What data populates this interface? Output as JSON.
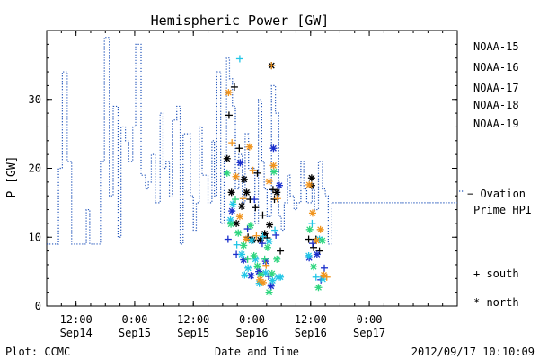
{
  "chart_data": {
    "type": "scatter",
    "title": "Hemispheric Power [GW]",
    "ylabel": "P [GW]",
    "xlabel": "Date and Time",
    "ylim": [
      0,
      40
    ],
    "yticks": [
      0,
      10,
      20,
      30
    ],
    "xlim_hours": [
      -6,
      78
    ],
    "xticks": [
      {
        "h": 0,
        "time": "12:00",
        "date": "Sep14"
      },
      {
        "h": 12,
        "time": "0:00",
        "date": "Sep15"
      },
      {
        "h": 24,
        "time": "12:00",
        "date": "Sep15"
      },
      {
        "h": 36,
        "time": "0:00",
        "date": "Sep16"
      },
      {
        "h": 48,
        "time": "12:00",
        "date": "Sep16"
      },
      {
        "h": 60,
        "time": "0:00",
        "date": "Sep17"
      }
    ],
    "legend": {
      "placement": "right",
      "satellites": [
        {
          "name": "NOAA-15",
          "color": "#000000"
        },
        {
          "name": "NOAA-16",
          "color": "#1a2fcc"
        },
        {
          "name": "NOAA-17",
          "color": "#22c6e6"
        },
        {
          "name": "NOAA-18",
          "color": "#2ed67e"
        },
        {
          "name": "NOAA-19",
          "color": "#f0941e"
        }
      ],
      "ovation_label_1": "− Ovation",
      "ovation_label_2": "Prime HPI",
      "ovation_color": "#2255bb",
      "south_label": "+ south",
      "north_label": "* north"
    },
    "series": [
      {
        "name": "Ovation Prime HPI",
        "style": "dotted-step",
        "color": "#2255bb",
        "points": [
          [
            -6,
            9
          ],
          [
            -3.6,
            20
          ],
          [
            -2.8,
            34
          ],
          [
            -1.8,
            21
          ],
          [
            -0.9,
            9
          ],
          [
            2.1,
            14
          ],
          [
            2.8,
            9
          ],
          [
            5,
            21
          ],
          [
            5.8,
            39
          ],
          [
            6.8,
            16
          ],
          [
            7.6,
            29
          ],
          [
            8.6,
            10
          ],
          [
            9.2,
            26
          ],
          [
            10.1,
            24
          ],
          [
            10.8,
            21
          ],
          [
            11.6,
            26
          ],
          [
            12.2,
            38
          ],
          [
            13.3,
            19
          ],
          [
            14.2,
            17
          ],
          [
            14.8,
            18
          ],
          [
            15.4,
            22
          ],
          [
            16.2,
            15
          ],
          [
            17.2,
            28
          ],
          [
            17.8,
            20
          ],
          [
            18.4,
            21
          ],
          [
            19.1,
            16
          ],
          [
            19.8,
            27
          ],
          [
            20.6,
            29
          ],
          [
            21.3,
            9
          ],
          [
            21.9,
            25
          ],
          [
            23.4,
            16
          ],
          [
            24,
            11
          ],
          [
            24.6,
            15
          ],
          [
            25.2,
            26
          ],
          [
            25.8,
            19
          ],
          [
            27,
            15
          ],
          [
            27.8,
            24
          ],
          [
            28.3,
            16
          ],
          [
            28.8,
            34
          ],
          [
            29.6,
            12
          ],
          [
            30.3,
            21
          ],
          [
            30.8,
            36
          ],
          [
            31.4,
            33
          ],
          [
            32,
            29
          ],
          [
            32.6,
            17
          ],
          [
            33.3,
            22
          ],
          [
            34,
            15
          ],
          [
            34.6,
            25
          ],
          [
            35.3,
            20
          ],
          [
            36,
            20
          ],
          [
            36.6,
            12
          ],
          [
            37.3,
            30
          ],
          [
            38,
            21
          ],
          [
            38.5,
            17
          ],
          [
            39.1,
            13
          ],
          [
            40,
            32
          ],
          [
            40.8,
            28
          ],
          [
            41.5,
            13
          ],
          [
            42,
            11
          ],
          [
            42.6,
            15
          ],
          [
            43.3,
            19
          ],
          [
            43.8,
            16
          ],
          [
            44.6,
            14
          ],
          [
            45.2,
            15
          ],
          [
            46,
            21
          ],
          [
            46.6,
            17
          ],
          [
            47.2,
            15
          ],
          [
            48.3,
            17
          ],
          [
            48.8,
            14
          ],
          [
            49.6,
            21
          ],
          [
            50.4,
            17
          ],
          [
            51,
            16
          ],
          [
            51.6,
            9
          ],
          [
            52.2,
            15
          ],
          [
            53,
            15
          ]
        ]
      },
      {
        "name": "NOAA-15",
        "color": "#000000",
        "points": [
          [
            30.9,
            21.4,
            "n"
          ],
          [
            31.3,
            27.7,
            "s"
          ],
          [
            31.8,
            16.5,
            "n"
          ],
          [
            32.4,
            31.8,
            "s"
          ],
          [
            32.8,
            12,
            "n"
          ],
          [
            33.4,
            22.9,
            "s"
          ],
          [
            33.9,
            14.5,
            "n"
          ],
          [
            34.4,
            18.4,
            "n"
          ],
          [
            34.9,
            16.5,
            "n"
          ],
          [
            35.2,
            10,
            "s"
          ],
          [
            35.6,
            15.5,
            "s"
          ],
          [
            36.1,
            9.6,
            "n"
          ],
          [
            36.7,
            14.3,
            "s"
          ],
          [
            37.1,
            19.3,
            "s"
          ],
          [
            37.7,
            9.6,
            "n"
          ],
          [
            38.2,
            13.2,
            "s"
          ],
          [
            38.6,
            10.5,
            "n"
          ],
          [
            39.1,
            9.9,
            "s"
          ],
          [
            39.6,
            11.8,
            "n"
          ],
          [
            40,
            34.9,
            "n"
          ],
          [
            40.3,
            16.9,
            "s"
          ],
          [
            40.6,
            15.5,
            "s"
          ],
          [
            41.1,
            16.5,
            "n"
          ],
          [
            41.8,
            8,
            "s"
          ],
          [
            47.6,
            9.7,
            "s"
          ],
          [
            48.2,
            18.6,
            "n"
          ],
          [
            48.6,
            8.5,
            "s"
          ],
          [
            49.1,
            9.7,
            "s"
          ],
          [
            49.8,
            8,
            "s"
          ],
          [
            48.2,
            17.5,
            "n"
          ]
        ]
      },
      {
        "name": "NOAA-16",
        "color": "#1a2fcc",
        "points": [
          [
            31.1,
            9.7,
            "s"
          ],
          [
            31.9,
            13.8,
            "n"
          ],
          [
            32.8,
            7.5,
            "s"
          ],
          [
            33.6,
            20.8,
            "n"
          ],
          [
            34.3,
            6.7,
            "n"
          ],
          [
            35.1,
            11.2,
            "s"
          ],
          [
            35.8,
            4.4,
            "n"
          ],
          [
            36.5,
            15.5,
            "s"
          ],
          [
            37.4,
            5,
            "n"
          ],
          [
            38.1,
            9.1,
            "s"
          ],
          [
            38.8,
            6.5,
            "n"
          ],
          [
            39.4,
            4.3,
            "s"
          ],
          [
            39.9,
            2.9,
            "n"
          ],
          [
            40.4,
            22.9,
            "n"
          ],
          [
            40.9,
            10.3,
            "s"
          ],
          [
            41.6,
            17.5,
            "n"
          ],
          [
            47.7,
            7,
            "n"
          ],
          [
            48.4,
            9.1,
            "s"
          ],
          [
            49.3,
            7.5,
            "n"
          ],
          [
            50.1,
            3.8,
            "s"
          ],
          [
            50.8,
            5.5,
            "s"
          ]
        ]
      },
      {
        "name": "NOAA-17",
        "color": "#22c6e6",
        "points": [
          [
            31.6,
            12.5,
            "n"
          ],
          [
            32.1,
            14.8,
            "n"
          ],
          [
            32.9,
            8.9,
            "s"
          ],
          [
            33.5,
            35.9,
            "s"
          ],
          [
            33.9,
            7.5,
            "n"
          ],
          [
            34.5,
            4.5,
            "n"
          ],
          [
            35.2,
            5.5,
            "n"
          ],
          [
            35.9,
            9.5,
            "n"
          ],
          [
            36.7,
            6.8,
            "n"
          ],
          [
            37.5,
            3.3,
            "n"
          ],
          [
            38.2,
            10.1,
            "s"
          ],
          [
            38.8,
            4.8,
            "n"
          ],
          [
            39.5,
            9.4,
            "n"
          ],
          [
            40.2,
            3.7,
            "n"
          ],
          [
            40.7,
            11,
            "s"
          ],
          [
            41.4,
            4.2,
            "n"
          ],
          [
            41.8,
            4.2,
            "n"
          ],
          [
            47.6,
            7.3,
            "n"
          ],
          [
            48.3,
            12,
            "s"
          ],
          [
            49.1,
            4.2,
            "s"
          ],
          [
            49.8,
            9.7,
            "n"
          ],
          [
            50.5,
            3.9,
            "n"
          ]
        ]
      },
      {
        "name": "NOAA-18",
        "color": "#2ed67e",
        "points": [
          [
            30.9,
            19.3,
            "n"
          ],
          [
            31.7,
            11.9,
            "n"
          ],
          [
            32.6,
            15.5,
            "s"
          ],
          [
            33.2,
            10.6,
            "n"
          ],
          [
            34.3,
            8.8,
            "n"
          ],
          [
            35.1,
            6.8,
            "s"
          ],
          [
            35.7,
            11.7,
            "n"
          ],
          [
            36.4,
            7.3,
            "n"
          ],
          [
            37.1,
            5.8,
            "n"
          ],
          [
            37.8,
            4.6,
            "n"
          ],
          [
            38.6,
            6.8,
            "s"
          ],
          [
            39.2,
            8.5,
            "n"
          ],
          [
            39.5,
            2,
            "n"
          ],
          [
            40.1,
            4.7,
            "n"
          ],
          [
            40.5,
            19.5,
            "n"
          ],
          [
            41.1,
            6.8,
            "n"
          ],
          [
            47.8,
            11.1,
            "n"
          ],
          [
            48.6,
            5.7,
            "n"
          ],
          [
            49.6,
            2.7,
            "n"
          ],
          [
            50.4,
            9.5,
            "n"
          ]
        ]
      },
      {
        "name": "NOAA-19",
        "color": "#f0941e",
        "points": [
          [
            31.2,
            31,
            "n"
          ],
          [
            31.9,
            23.7,
            "s"
          ],
          [
            32.7,
            18.8,
            "n"
          ],
          [
            33.5,
            13,
            "n"
          ],
          [
            34.2,
            15.6,
            "s"
          ],
          [
            34.8,
            9.7,
            "n"
          ],
          [
            35.5,
            23.1,
            "n"
          ],
          [
            36.2,
            19.7,
            "s"
          ],
          [
            36.9,
            10.2,
            "s"
          ],
          [
            37.6,
            3.8,
            "n"
          ],
          [
            38.3,
            3.4,
            "n"
          ],
          [
            38.9,
            5.9,
            "s"
          ],
          [
            39.5,
            18.1,
            "n"
          ],
          [
            40,
            34.9,
            "s"
          ],
          [
            40.4,
            20.4,
            "n"
          ],
          [
            41.2,
            15.6,
            "s"
          ],
          [
            47.7,
            17.6,
            "n"
          ],
          [
            48.4,
            13.5,
            "n"
          ],
          [
            49.2,
            9.5,
            "n"
          ],
          [
            50,
            11.1,
            "n"
          ],
          [
            50.7,
            4.5,
            "n"
          ],
          [
            51.3,
            4.2,
            "s"
          ]
        ]
      }
    ]
  },
  "footer": {
    "plot_credit": "Plot: CCMC",
    "timestamp": "2012/09/17 10:10:09"
  }
}
